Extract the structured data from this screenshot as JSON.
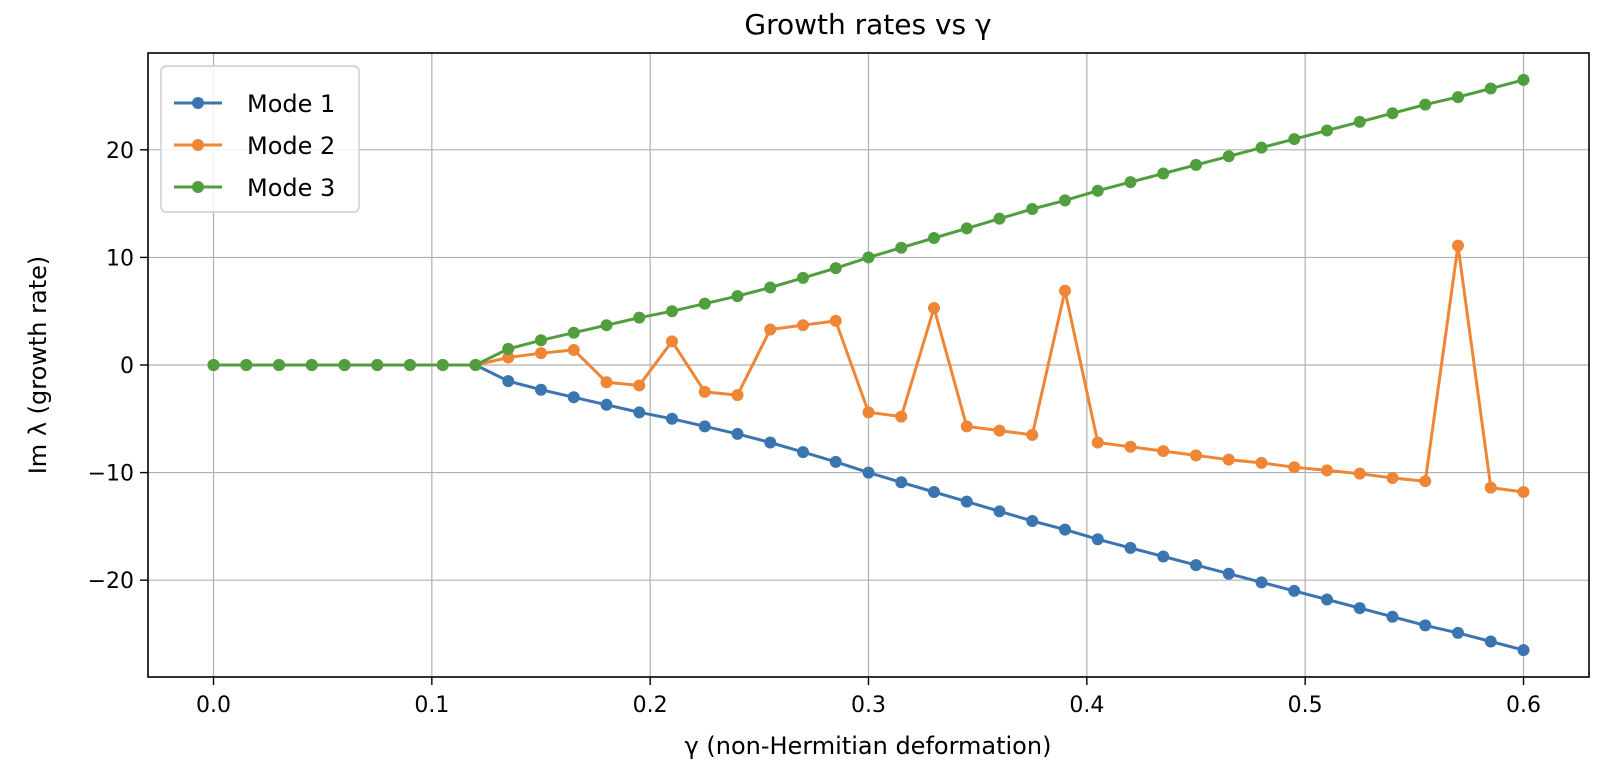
{
  "chart_data": {
    "type": "line",
    "title": "Growth rates vs γ",
    "xlabel": "γ (non-Hermitian deformation)",
    "ylabel": "Im λ (growth rate)",
    "xlim": [
      -0.03,
      0.63
    ],
    "ylim": [
      -29.0,
      29.0
    ],
    "xticks": [
      0.0,
      0.1,
      0.2,
      0.3,
      0.4,
      0.5,
      0.6
    ],
    "xtick_labels": [
      "0.0",
      "0.1",
      "0.2",
      "0.3",
      "0.4",
      "0.5",
      "0.6"
    ],
    "yticks": [
      -20,
      -10,
      0,
      10,
      20
    ],
    "ytick_labels": [
      "−20",
      "−10",
      "0",
      "10",
      "20"
    ],
    "grid": true,
    "legend_position": "top-left",
    "x": [
      0.0,
      0.015,
      0.03,
      0.045,
      0.06,
      0.075,
      0.09,
      0.105,
      0.12,
      0.135,
      0.15,
      0.165,
      0.18,
      0.195,
      0.21,
      0.225,
      0.24,
      0.255,
      0.27,
      0.285,
      0.3,
      0.315,
      0.33,
      0.345,
      0.36,
      0.375,
      0.39,
      0.405,
      0.42,
      0.435,
      0.45,
      0.465,
      0.48,
      0.495,
      0.51,
      0.525,
      0.54,
      0.555,
      0.57,
      0.585,
      0.6
    ],
    "series": [
      {
        "name": "Mode 1",
        "color": "#3a75b0",
        "values": [
          0,
          0,
          0,
          0,
          0,
          0,
          0,
          0,
          0,
          -1.5,
          -2.3,
          -3.0,
          -3.7,
          -4.4,
          -5.0,
          -5.7,
          -6.4,
          -7.2,
          -8.1,
          -9.0,
          -10.0,
          -10.9,
          -11.8,
          -12.7,
          -13.6,
          -14.5,
          -15.3,
          -16.2,
          -17.0,
          -17.8,
          -18.6,
          -19.4,
          -20.2,
          -21.0,
          -21.8,
          -22.6,
          -23.4,
          -24.2,
          -24.9,
          -25.7,
          -26.5
        ]
      },
      {
        "name": "Mode 2",
        "color": "#ef8636",
        "values": [
          0,
          0,
          0,
          0,
          0,
          0,
          0,
          0,
          0,
          0.7,
          1.1,
          1.4,
          -1.6,
          -1.9,
          2.2,
          -2.5,
          -2.8,
          3.3,
          3.7,
          4.1,
          -4.4,
          -4.8,
          5.3,
          -5.7,
          -6.1,
          -6.5,
          6.9,
          -7.2,
          -7.6,
          -8.0,
          -8.4,
          -8.8,
          -9.1,
          -9.5,
          -9.8,
          -10.1,
          -10.5,
          -10.8,
          11.1,
          -11.4,
          -11.8
        ]
      },
      {
        "name": "Mode 3",
        "color": "#519e3e",
        "values": [
          0,
          0,
          0,
          0,
          0,
          0,
          0,
          0,
          0,
          1.5,
          2.3,
          3.0,
          3.7,
          4.4,
          5.0,
          5.7,
          6.4,
          7.2,
          8.1,
          9.0,
          10.0,
          10.9,
          11.8,
          12.7,
          13.6,
          14.5,
          15.3,
          16.2,
          17.0,
          17.8,
          18.6,
          19.4,
          20.2,
          21.0,
          21.8,
          22.6,
          23.4,
          24.2,
          24.9,
          25.7,
          26.5
        ]
      }
    ]
  }
}
